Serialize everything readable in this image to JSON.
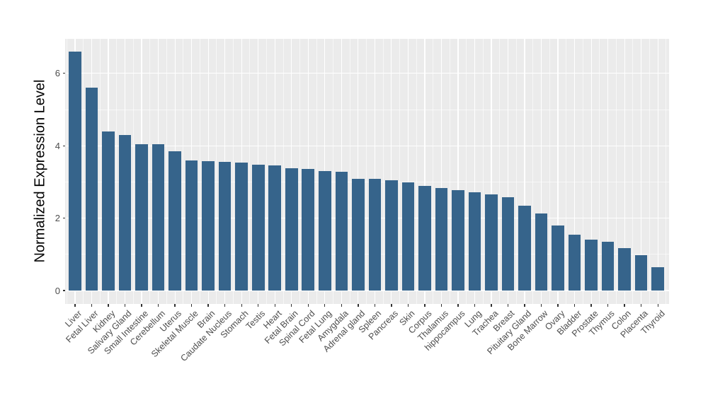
{
  "chart_data": {
    "type": "bar",
    "title": "",
    "xlabel": "",
    "ylabel": "Normalized Expression Level",
    "ylim": [
      0,
      7
    ],
    "yticks": [
      0,
      2,
      4,
      6
    ],
    "yticks_minor": [
      1,
      3,
      5
    ],
    "legend": "none",
    "grid": "white major and minor gridlines on gray panel",
    "panel_bg": "#EBEBEB",
    "bar_color": "#36648B",
    "tick_label_color": "#4D4D4D",
    "x_label_rotation_deg": 45,
    "categories": [
      "Liver",
      "Fetal Liver",
      "Kidney",
      "Salivary Gland",
      "Small Intestine",
      "Cerebellum",
      "Uterus",
      "Skeletal Muscle",
      "Brain",
      "Caudate Nucleus",
      "Stomach",
      "Testis",
      "Heart",
      "Fetal Brain",
      "Spinal Cord",
      "Fetal Lung",
      "Amygdala",
      "Adrenal gland",
      "Spleen",
      "Pancreas",
      "Skin",
      "Corpus",
      "Thalamus",
      "hippocampus",
      "Lung",
      "Trachea",
      "Breast",
      "Pituitary Gland",
      "Bone Marrow",
      "Ovary",
      "Bladder",
      "Prostate",
      "Thymus",
      "Colon",
      "Placenta",
      "Thyroid"
    ],
    "values": [
      6.6,
      5.61,
      4.4,
      4.29,
      4.05,
      4.04,
      3.85,
      3.6,
      3.57,
      3.56,
      3.54,
      3.47,
      3.45,
      3.37,
      3.35,
      3.31,
      3.29,
      3.09,
      3.08,
      3.04,
      2.98,
      2.9,
      2.83,
      2.77,
      2.72,
      2.65,
      2.57,
      2.34,
      2.13,
      1.8,
      1.54,
      1.41,
      1.35,
      1.18,
      0.98,
      0.65
    ]
  }
}
